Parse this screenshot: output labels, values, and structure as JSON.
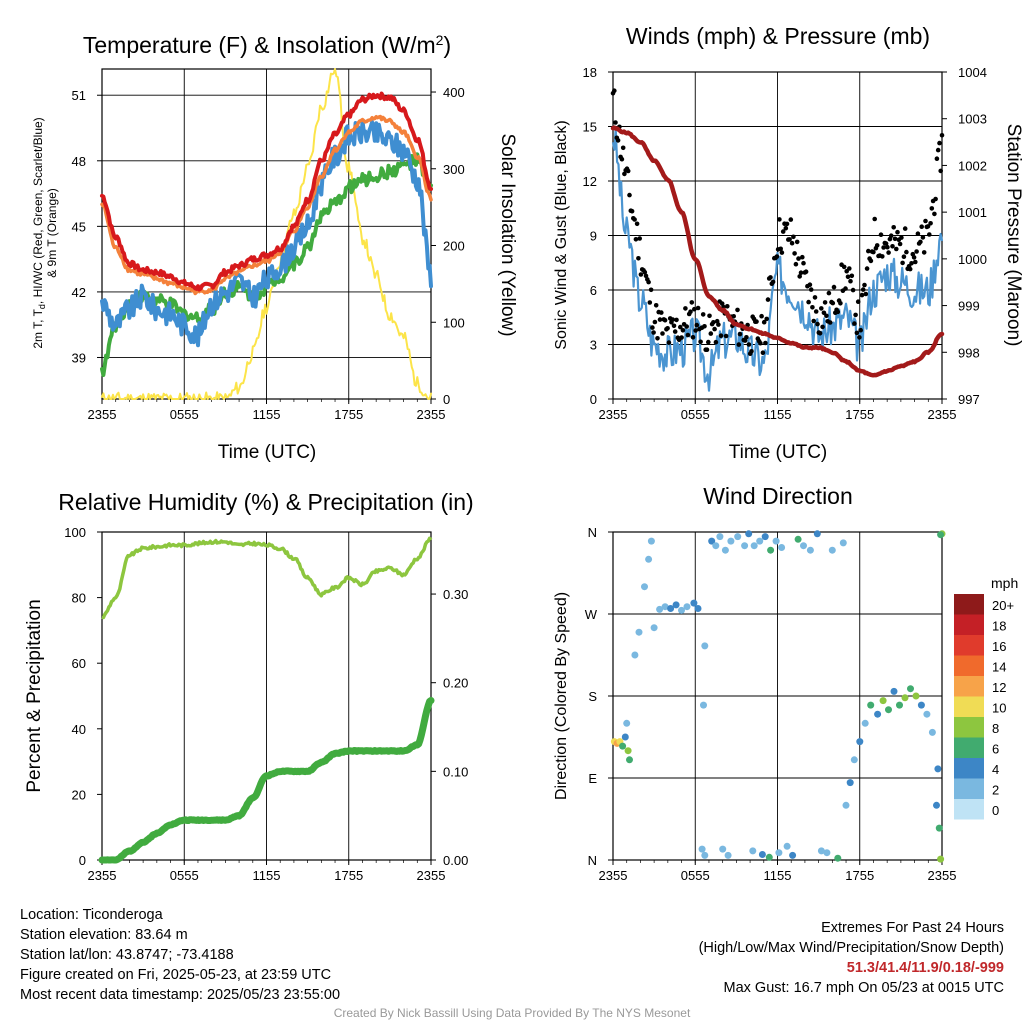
{
  "chart_data": [
    {
      "type": "line",
      "title": "Temperature (F) & Insolation (W/m²)",
      "xlabel": "Time (UTC)",
      "ylabel": "2m T, Tₐ, HI/WC (Red, Green, Scarlet/Blue) & 9m T (Orange)",
      "ylabel_line1": "2m T, T",
      "ylabel_sub": "d",
      "ylabel_line1_rest": ", HI/WC (Red, Green, Scarlet/Blue)",
      "ylabel_line2": "& 9m T (Orange)",
      "y2label": "Solar Insolation (Yellow)",
      "ylim": [
        37.1,
        52.2
      ],
      "y2lim": [
        0,
        430
      ],
      "x_ticks": [
        "2355",
        "0555",
        "1155",
        "1755",
        "2355"
      ],
      "y_ticks": [
        39,
        42,
        45,
        48,
        51
      ],
      "y2_ticks": [
        0,
        100,
        200,
        300,
        400
      ],
      "x": [
        0,
        1,
        2,
        3,
        4,
        5,
        6,
        7,
        8,
        9,
        10,
        11,
        12,
        13,
        14,
        15,
        16,
        17,
        18,
        19,
        20,
        21,
        22,
        23,
        24
      ],
      "series": [
        {
          "name": "2m T",
          "color": "#d7191c",
          "axis": "left",
          "values": [
            46.4,
            44.5,
            43.3,
            43.0,
            42.9,
            42.7,
            42.4,
            42.2,
            42.3,
            42.9,
            43.2,
            43.5,
            43.7,
            44.0,
            45.0,
            46.2,
            48.0,
            49.2,
            50.1,
            50.8,
            51.0,
            50.9,
            50.3,
            49.0,
            46.8
          ]
        },
        {
          "name": "9m T",
          "color": "#f4813b",
          "axis": "left",
          "values": [
            46.0,
            44.0,
            43.0,
            42.8,
            42.6,
            42.4,
            42.2,
            42.0,
            42.1,
            42.6,
            42.9,
            43.2,
            43.4,
            43.8,
            44.8,
            45.9,
            47.3,
            48.5,
            49.3,
            49.8,
            50.0,
            49.8,
            49.3,
            48.2,
            46.3
          ]
        },
        {
          "name": "HI/WC",
          "color": "#3f8ed1",
          "axis": "left",
          "values": [
            41.5,
            40.5,
            41.2,
            41.8,
            41.2,
            41.0,
            40.5,
            40.0,
            41.5,
            42.0,
            42.5,
            41.8,
            42.5,
            43.2,
            44.0,
            45.0,
            47.0,
            48.2,
            49.1,
            49.3,
            49.2,
            48.9,
            48.5,
            47.2,
            42.8
          ]
        },
        {
          "name": "Td",
          "color": "#41ab3f",
          "axis": "left",
          "values": [
            38.4,
            40.5,
            41.5,
            41.8,
            41.6,
            41.4,
            41.0,
            40.8,
            41.2,
            42.0,
            42.2,
            41.8,
            42.2,
            42.7,
            43.3,
            44.0,
            45.5,
            46.0,
            46.8,
            47.1,
            47.3,
            47.5,
            47.8,
            48.0,
            46.6
          ]
        },
        {
          "name": "Solar Insolation",
          "color": "#fce449",
          "axis": "right",
          "values": [
            0,
            0,
            0,
            0,
            0,
            0,
            0,
            0,
            0,
            0,
            15,
            60,
            120,
            180,
            240,
            300,
            380,
            430,
            300,
            210,
            160,
            110,
            80,
            20,
            0
          ]
        }
      ]
    },
    {
      "type": "line",
      "title": "Winds (mph) & Pressure (mb)",
      "xlabel": "Time (UTC)",
      "ylabel": "Sonic Wind & Gust (Blue, Black)",
      "y2label": "Station Pressure (Maroon)",
      "ylim": [
        0,
        18
      ],
      "y2lim": [
        997,
        1004
      ],
      "x_ticks": [
        "2355",
        "0555",
        "1155",
        "1755",
        "2355"
      ],
      "y_ticks": [
        0,
        3,
        6,
        9,
        12,
        15,
        18
      ],
      "y2_ticks": [
        997,
        998,
        999,
        1000,
        1001,
        1002,
        1003,
        1004
      ],
      "x": [
        0,
        1,
        2,
        3,
        4,
        5,
        6,
        7,
        8,
        9,
        10,
        11,
        12,
        13,
        14,
        15,
        16,
        17,
        18,
        19,
        20,
        21,
        22,
        23,
        24
      ],
      "series": [
        {
          "name": "Sonic Wind",
          "color": "#4b95d1",
          "axis": "left",
          "values": [
            14.5,
            9.0,
            5.5,
            3.0,
            2.5,
            2.8,
            3.5,
            1.5,
            3.2,
            3.5,
            2.5,
            2.0,
            7.0,
            6.0,
            5.0,
            3.5,
            4.0,
            4.5,
            3.0,
            6.0,
            7.0,
            6.5,
            6.0,
            6.0,
            9.0
          ]
        },
        {
          "name": "Gust",
          "color": "#000000",
          "axis": "left",
          "values": [
            16.5,
            12.0,
            8.0,
            4.5,
            3.5,
            4.0,
            4.5,
            3.5,
            4.5,
            4.0,
            3.5,
            3.5,
            9.0,
            9.0,
            6.5,
            4.5,
            5.0,
            7.0,
            4.0,
            9.0,
            8.5,
            8.5,
            8.0,
            9.0,
            14.0
          ]
        },
        {
          "name": "Station Pressure",
          "color": "#a31a1a",
          "axis": "right",
          "values": [
            1002.8,
            1002.7,
            1002.5,
            1002.1,
            1001.7,
            1001.0,
            1000.0,
            999.2,
            998.9,
            998.6,
            998.5,
            998.4,
            998.3,
            998.2,
            998.1,
            998.1,
            998.0,
            997.8,
            997.6,
            997.5,
            997.6,
            997.7,
            997.8,
            998.0,
            998.4
          ]
        }
      ]
    },
    {
      "type": "line",
      "title": "Relative Humidity (%) & Precipitation (in)",
      "xlabel": "",
      "ylabel": "Percent & Precipitation",
      "ylim": [
        0,
        100
      ],
      "y2lim": [
        0,
        0.37
      ],
      "x_ticks": [
        "2355",
        "0555",
        "1155",
        "1755",
        "2355"
      ],
      "y_ticks": [
        0,
        20,
        40,
        60,
        80,
        100
      ],
      "y2_ticks": [
        "0.00",
        "0.10",
        "0.20",
        "0.30"
      ],
      "y2_tick_values": [
        0,
        0.1,
        0.2,
        0.3
      ],
      "x": [
        0,
        1,
        2,
        3,
        4,
        5,
        6,
        7,
        8,
        9,
        10,
        11,
        12,
        13,
        14,
        15,
        16,
        17,
        18,
        19,
        20,
        21,
        22,
        23,
        24
      ],
      "series": [
        {
          "name": "Relative Humidity",
          "color": "#8dc63f",
          "axis": "left",
          "values": [
            74,
            80,
            93,
            95,
            95.5,
            96,
            96,
            96.5,
            97,
            97,
            96,
            96.5,
            96,
            95,
            92,
            86,
            81,
            83,
            86,
            84,
            88,
            89,
            87,
            92,
            98
          ]
        },
        {
          "name": "Precipitation",
          "color": "#41ab3f",
          "axis": "right",
          "values": [
            0,
            0,
            0.01,
            0.02,
            0.03,
            0.04,
            0.045,
            0.045,
            0.045,
            0.045,
            0.05,
            0.07,
            0.095,
            0.1,
            0.1,
            0.1,
            0.11,
            0.12,
            0.123,
            0.123,
            0.123,
            0.123,
            0.123,
            0.13,
            0.18
          ]
        }
      ]
    },
    {
      "type": "scatter",
      "title": "Wind Direction",
      "xlabel": "",
      "ylabel": "Direction (Colored By Speed)",
      "x_ticks": [
        "2355",
        "0555",
        "1155",
        "1755",
        "2355"
      ],
      "y_ticks": [
        "N",
        "E",
        "S",
        "W",
        "N"
      ],
      "ylim": [
        0,
        360
      ],
      "colorbar": {
        "title": "mph",
        "labels": [
          "20+",
          "18",
          "16",
          "14",
          "12",
          "10",
          "8",
          "6",
          "4",
          "2",
          "0"
        ],
        "colors": [
          "#8e1a1a",
          "#c42026",
          "#e03b2c",
          "#f06a2c",
          "#f7a349",
          "#f0dc55",
          "#8dc63f",
          "#41ab6f",
          "#3d86c6",
          "#7ab8e0",
          "#bfe3f5"
        ]
      },
      "points": [
        {
          "x": 0.1,
          "dir": 130,
          "speed": 10
        },
        {
          "x": 0.3,
          "dir": 128,
          "speed": 12
        },
        {
          "x": 0.5,
          "dir": 130,
          "speed": 9
        },
        {
          "x": 0.7,
          "dir": 125,
          "speed": 6
        },
        {
          "x": 0.9,
          "dir": 135,
          "speed": 4
        },
        {
          "x": 1.1,
          "dir": 120,
          "speed": 7
        },
        {
          "x": 1.2,
          "dir": 110,
          "speed": 6
        },
        {
          "x": 1.0,
          "dir": 150,
          "speed": 2
        },
        {
          "x": 1.6,
          "dir": 225,
          "speed": 2
        },
        {
          "x": 1.9,
          "dir": 250,
          "speed": 2
        },
        {
          "x": 2.3,
          "dir": 300,
          "speed": 2
        },
        {
          "x": 2.6,
          "dir": 330,
          "speed": 2
        },
        {
          "x": 2.8,
          "dir": 350,
          "speed": 2
        },
        {
          "x": 3.0,
          "dir": 255,
          "speed": 2
        },
        {
          "x": 3.4,
          "dir": 275,
          "speed": 2
        },
        {
          "x": 3.8,
          "dir": 278,
          "speed": 2
        },
        {
          "x": 4.2,
          "dir": 276,
          "speed": 4
        },
        {
          "x": 4.6,
          "dir": 280,
          "speed": 4
        },
        {
          "x": 5.0,
          "dir": 274,
          "speed": 2
        },
        {
          "x": 5.4,
          "dir": 278,
          "speed": 2
        },
        {
          "x": 5.9,
          "dir": 282,
          "speed": 4
        },
        {
          "x": 6.2,
          "dir": 276,
          "speed": 4
        },
        {
          "x": 6.6,
          "dir": 170,
          "speed": 1
        },
        {
          "x": 6.7,
          "dir": 235,
          "speed": 1
        },
        {
          "x": 6.5,
          "dir": 12,
          "speed": 2
        },
        {
          "x": 6.7,
          "dir": 5,
          "speed": 2
        },
        {
          "x": 7.2,
          "dir": 350,
          "speed": 4
        },
        {
          "x": 7.5,
          "dir": 345,
          "speed": 2
        },
        {
          "x": 7.8,
          "dir": 355,
          "speed": 2
        },
        {
          "x": 8.2,
          "dir": 340,
          "speed": 2
        },
        {
          "x": 8.6,
          "dir": 350,
          "speed": 2
        },
        {
          "x": 8.0,
          "dir": 12,
          "speed": 2
        },
        {
          "x": 8.4,
          "dir": 5,
          "speed": 2
        },
        {
          "x": 9.1,
          "dir": 355,
          "speed": 2
        },
        {
          "x": 9.6,
          "dir": 345,
          "speed": 2
        },
        {
          "x": 9.9,
          "dir": 358,
          "speed": 4
        },
        {
          "x": 10.3,
          "dir": 345,
          "speed": 2
        },
        {
          "x": 10.7,
          "dir": 350,
          "speed": 2
        },
        {
          "x": 11.1,
          "dir": 355,
          "speed": 4
        },
        {
          "x": 11.5,
          "dir": 340,
          "speed": 6
        },
        {
          "x": 11.9,
          "dir": 350,
          "speed": 2
        },
        {
          "x": 12.3,
          "dir": 343,
          "speed": 2
        },
        {
          "x": 10.2,
          "dir": 10,
          "speed": 2
        },
        {
          "x": 10.9,
          "dir": 6,
          "speed": 4
        },
        {
          "x": 11.4,
          "dir": 3,
          "speed": 6
        },
        {
          "x": 12.1,
          "dir": 8,
          "speed": 2
        },
        {
          "x": 12.7,
          "dir": 15,
          "speed": 2
        },
        {
          "x": 13.1,
          "dir": 5,
          "speed": 4
        },
        {
          "x": 13.5,
          "dir": 352,
          "speed": 6
        },
        {
          "x": 13.9,
          "dir": 345,
          "speed": 2
        },
        {
          "x": 14.4,
          "dir": 340,
          "speed": 2
        },
        {
          "x": 14.9,
          "dir": 358,
          "speed": 4
        },
        {
          "x": 15.2,
          "dir": 10,
          "speed": 2
        },
        {
          "x": 15.6,
          "dir": 8,
          "speed": 1
        },
        {
          "x": 16.0,
          "dir": 340,
          "speed": 2
        },
        {
          "x": 16.4,
          "dir": 2,
          "speed": 6
        },
        {
          "x": 16.8,
          "dir": 348,
          "speed": 2
        },
        {
          "x": 17.0,
          "dir": 60,
          "speed": 2
        },
        {
          "x": 17.3,
          "dir": 85,
          "speed": 4
        },
        {
          "x": 17.6,
          "dir": 110,
          "speed": 2
        },
        {
          "x": 18.0,
          "dir": 130,
          "speed": 4
        },
        {
          "x": 18.4,
          "dir": 150,
          "speed": 2
        },
        {
          "x": 18.8,
          "dir": 170,
          "speed": 6
        },
        {
          "x": 19.3,
          "dir": 160,
          "speed": 4
        },
        {
          "x": 19.7,
          "dir": 175,
          "speed": 8
        },
        {
          "x": 20.1,
          "dir": 165,
          "speed": 6
        },
        {
          "x": 20.5,
          "dir": 185,
          "speed": 4
        },
        {
          "x": 20.9,
          "dir": 170,
          "speed": 6
        },
        {
          "x": 21.3,
          "dir": 178,
          "speed": 8
        },
        {
          "x": 21.7,
          "dir": 188,
          "speed": 6
        },
        {
          "x": 22.1,
          "dir": 180,
          "speed": 8
        },
        {
          "x": 22.5,
          "dir": 170,
          "speed": 4
        },
        {
          "x": 22.9,
          "dir": 160,
          "speed": 2
        },
        {
          "x": 23.3,
          "dir": 140,
          "speed": 2
        },
        {
          "x": 23.6,
          "dir": 60,
          "speed": 4
        },
        {
          "x": 23.7,
          "dir": 100,
          "speed": 4
        },
        {
          "x": 23.8,
          "dir": 35,
          "speed": 6
        },
        {
          "x": 23.9,
          "dir": 1,
          "speed": 8
        },
        {
          "x": 24.0,
          "dir": 358,
          "speed": 8
        },
        {
          "x": 23.9,
          "dir": 357,
          "speed": 6
        }
      ]
    }
  ],
  "footer": {
    "location": "Location: Ticonderoga",
    "elevation": "Station elevation: 83.64 m",
    "latlon": "Station lat/lon: 43.8747; -73.4188",
    "created": "Figure created on Fri, 2025-05-23, at 23:59 UTC",
    "recent": "Most recent data timestamp: 2025/05/23 23:55:00",
    "extremes_title": "Extremes For Past 24 Hours",
    "extremes_sub": "(High/Low/Max Wind/Precipitation/Snow Depth)",
    "extremes_values": "51.3/41.4/11.9/0.18/-999",
    "max_gust": "Max Gust: 16.7 mph On 05/23 at 0015 UTC",
    "credit": "Created By Nick Bassill Using Data Provided By The NYS Mesonet"
  }
}
